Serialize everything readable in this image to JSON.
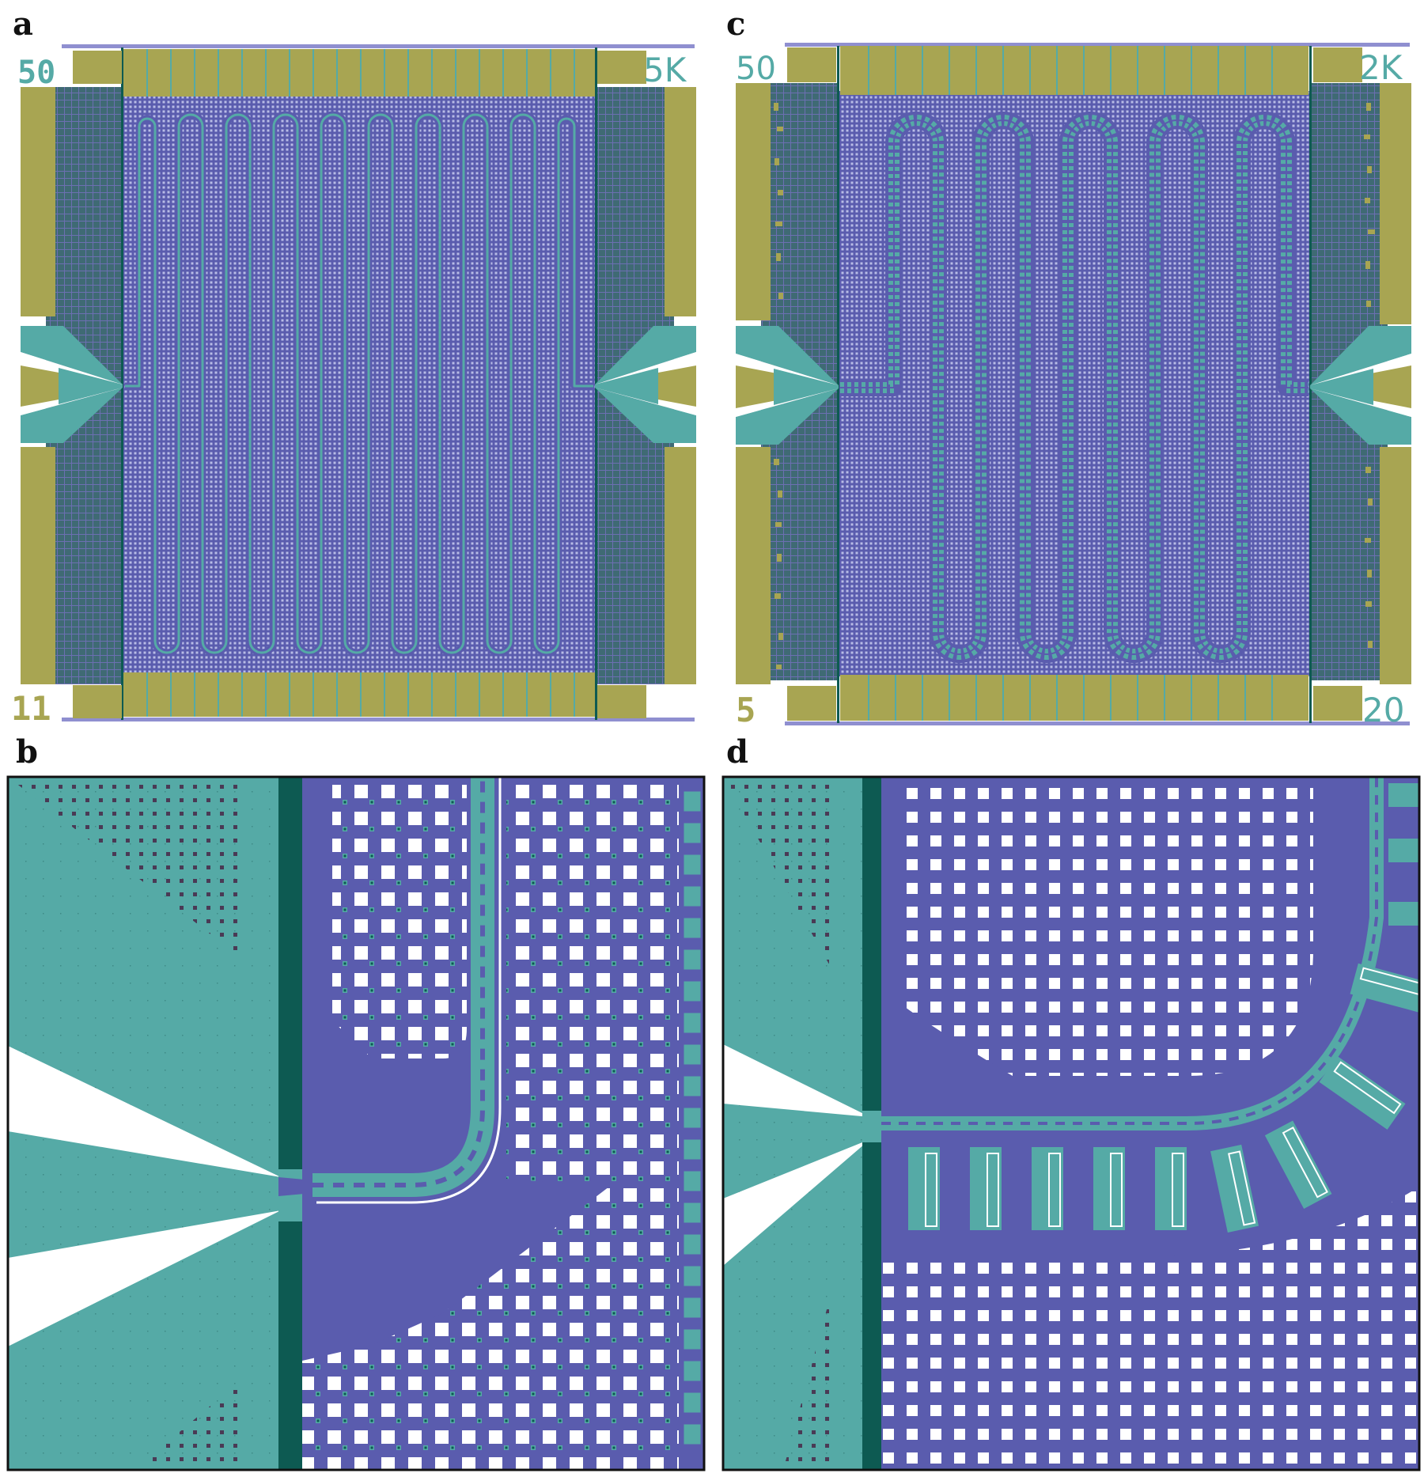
{
  "panels": [
    {
      "letter": "a",
      "labels": {
        "top_left": "50",
        "top_right": "5K",
        "bottom_left": "11"
      }
    },
    {
      "letter": "c",
      "labels": {
        "top_left": "50",
        "top_right": "2K",
        "bottom_left": "5",
        "bottom_right": "20"
      }
    },
    {
      "letter": "b"
    },
    {
      "letter": "d"
    }
  ],
  "colors": {
    "gold": "#a8a552",
    "teal": "#55aaa6",
    "dark_teal": "#0d5a52",
    "periwinkle": "#5a5cae",
    "grid_dark": "#3f6a74",
    "mesh": "#7c80c4",
    "white": "#ffffff"
  }
}
